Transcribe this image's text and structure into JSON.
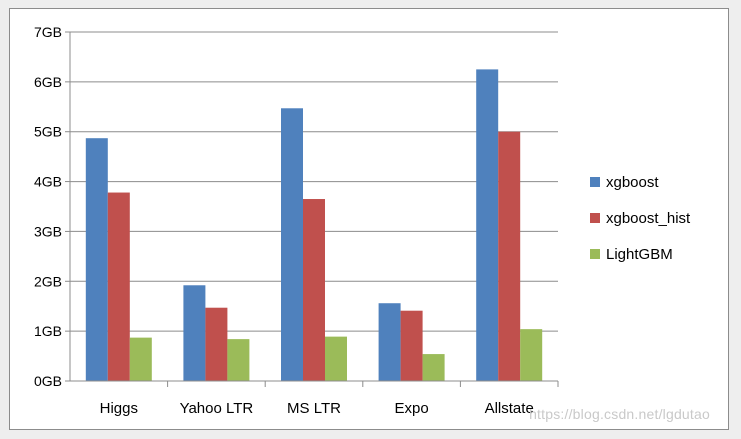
{
  "chart_data": {
    "type": "bar",
    "categories": [
      "Higgs",
      "Yahoo LTR",
      "MS LTR",
      "Expo",
      "Allstate"
    ],
    "series": [
      {
        "name": "xgboost",
        "color": "#4f81bd",
        "values": [
          4.87,
          1.92,
          5.47,
          1.56,
          6.25
        ]
      },
      {
        "name": "xgboost_hist",
        "color": "#c0504d",
        "values": [
          3.78,
          1.47,
          3.65,
          1.41,
          5.0
        ]
      },
      {
        "name": "LightGBM",
        "color": "#9bbb59",
        "values": [
          0.87,
          0.84,
          0.89,
          0.54,
          1.04
        ]
      }
    ],
    "yticks": [
      "0GB",
      "1GB",
      "2GB",
      "3GB",
      "4GB",
      "5GB",
      "6GB",
      "7GB"
    ],
    "ylim": [
      0,
      7
    ],
    "grid": true,
    "legend": "right"
  },
  "watermark": "https://blog.csdn.net/lgdutao"
}
